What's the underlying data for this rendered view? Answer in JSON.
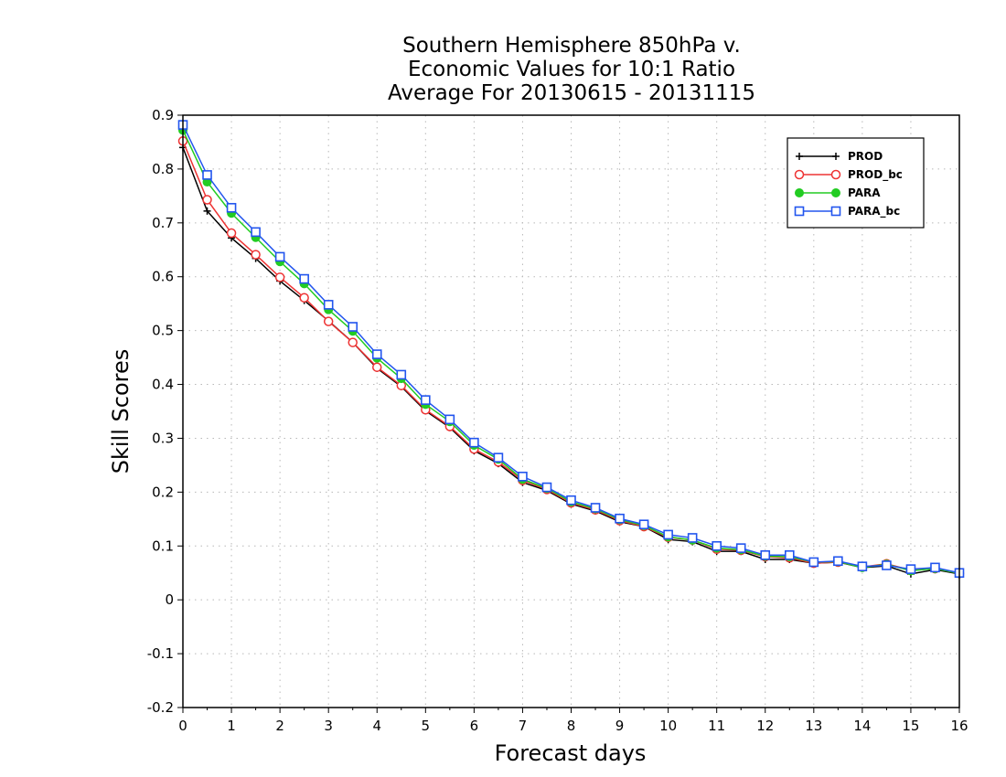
{
  "chart_data": {
    "type": "line",
    "title_lines": [
      "Southern Hemisphere 850hPa v.",
      "Economic Values for 10:1 Ratio",
      "Average For 20130615 - 20131115"
    ],
    "xlabel": "Forecast days",
    "ylabel": "Skill Scores",
    "xlim": [
      0,
      16
    ],
    "ylim": [
      -0.2,
      0.9
    ],
    "xticks": [
      "0",
      "1",
      "2",
      "3",
      "4",
      "5",
      "6",
      "7",
      "8",
      "9",
      "10",
      "11",
      "12",
      "13",
      "14",
      "15",
      "16"
    ],
    "yticks": [
      "-0.2",
      "-0.1",
      "0",
      "0.1",
      "0.2",
      "0.3",
      "0.4",
      "0.5",
      "0.6",
      "0.7",
      "0.8",
      "0.9"
    ],
    "grid": true,
    "legend_position": "top-right",
    "x": [
      0,
      0.5,
      1,
      1.5,
      2,
      2.5,
      3,
      3.5,
      4,
      4.5,
      5,
      5.5,
      6,
      6.5,
      7,
      7.5,
      8,
      8.5,
      9,
      9.5,
      10,
      10.5,
      11,
      11.5,
      12,
      12.5,
      13,
      13.5,
      14,
      14.5,
      15,
      15.5,
      16
    ],
    "series": [
      {
        "name": "PROD",
        "color": "#000000",
        "marker": "plus",
        "values": [
          0.84,
          0.722,
          0.672,
          0.634,
          0.592,
          0.556,
          0.518,
          0.478,
          0.43,
          0.396,
          0.351,
          0.32,
          0.277,
          0.253,
          0.218,
          0.203,
          0.178,
          0.165,
          0.145,
          0.136,
          0.112,
          0.108,
          0.09,
          0.09,
          0.075,
          0.075,
          0.068,
          0.07,
          0.06,
          0.063,
          0.048,
          0.056,
          0.048
        ]
      },
      {
        "name": "PROD_bc",
        "color": "#ee3333",
        "marker": "open-circle",
        "values": [
          0.852,
          0.743,
          0.681,
          0.641,
          0.599,
          0.561,
          0.517,
          0.478,
          0.432,
          0.398,
          0.353,
          0.322,
          0.28,
          0.256,
          0.222,
          0.205,
          0.18,
          0.167,
          0.147,
          0.136,
          0.116,
          0.111,
          0.094,
          0.092,
          0.08,
          0.078,
          0.068,
          0.07,
          0.061,
          0.067,
          0.055,
          0.058,
          0.049
        ]
      },
      {
        "name": "PARA",
        "color": "#22cc22",
        "marker": "filled-circle",
        "values": [
          0.872,
          0.776,
          0.718,
          0.673,
          0.628,
          0.587,
          0.539,
          0.499,
          0.449,
          0.411,
          0.363,
          0.331,
          0.287,
          0.261,
          0.224,
          0.207,
          0.182,
          0.169,
          0.149,
          0.138,
          0.117,
          0.111,
          0.096,
          0.093,
          0.081,
          0.08,
          0.07,
          0.071,
          0.06,
          0.066,
          0.054,
          0.058,
          0.049
        ]
      },
      {
        "name": "PARA_bc",
        "color": "#2255ee",
        "marker": "open-square",
        "values": [
          0.882,
          0.789,
          0.728,
          0.683,
          0.637,
          0.596,
          0.548,
          0.507,
          0.456,
          0.418,
          0.371,
          0.335,
          0.292,
          0.264,
          0.229,
          0.209,
          0.185,
          0.171,
          0.151,
          0.14,
          0.121,
          0.115,
          0.1,
          0.096,
          0.083,
          0.083,
          0.07,
          0.072,
          0.062,
          0.064,
          0.057,
          0.06,
          0.05
        ]
      }
    ]
  }
}
